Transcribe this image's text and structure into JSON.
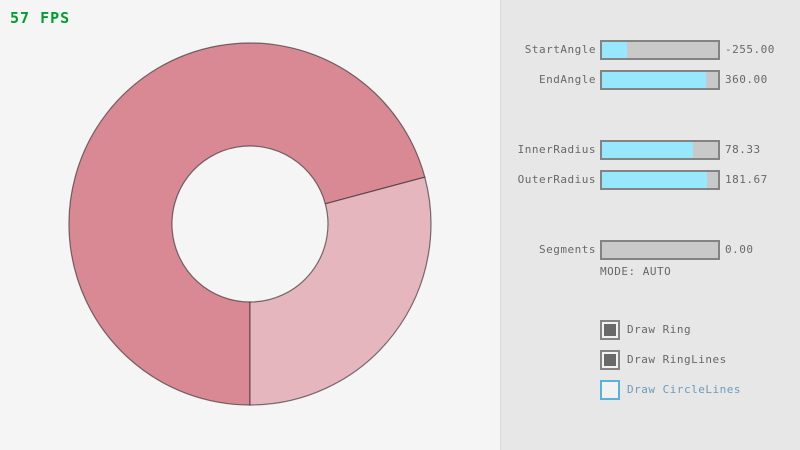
{
  "app": {
    "fps_label": "57 FPS"
  },
  "ring": {
    "dark_color": "#D98994",
    "light_color": "#E5B6BD",
    "description": "donut ring, overlap segment darker, single-pass segment lighter",
    "inner_radius": 78.33,
    "outer_radius": 181.67,
    "start_angle": -255.0,
    "end_angle": 360.0
  },
  "controls": {
    "sliders": [
      {
        "label": "StartAngle",
        "value": "-255.00",
        "fill_pct": 21.7
      },
      {
        "label": "EndAngle",
        "value": "360.00",
        "fill_pct": 90.0
      },
      {
        "label": "InnerRadius",
        "value": "78.33",
        "fill_pct": 78.3
      },
      {
        "label": "OuterRadius",
        "value": "181.67",
        "fill_pct": 90.8
      },
      {
        "label": "Segments",
        "value": "0.00",
        "fill_pct": 0.0
      }
    ],
    "mode_label": "MODE: AUTO",
    "checkboxes": [
      {
        "label": "Draw Ring",
        "checked": true
      },
      {
        "label": "Draw RingLines",
        "checked": true
      },
      {
        "label": "Draw CircleLines",
        "checked": false
      }
    ]
  }
}
